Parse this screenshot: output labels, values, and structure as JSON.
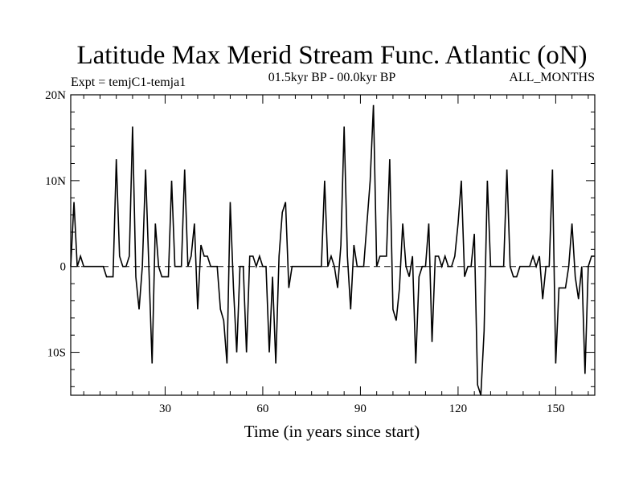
{
  "chart_data": {
    "type": "line",
    "title": "Latitude Max Merid Stream Func. Atlantic (oN)",
    "subtitle_left": "Expt = temjC1-temja1",
    "subtitle_center": "01.5kyr BP - 00.0kyr BP",
    "subtitle_right": "ALL_MONTHS",
    "xlabel": "Time (in years since start)",
    "ylabel": "",
    "xlim": [
      1,
      162
    ],
    "ylim": [
      -15,
      20
    ],
    "x_ticks": [
      30,
      60,
      90,
      120,
      150
    ],
    "y_ticks": [
      {
        "value": 20,
        "label": "20N"
      },
      {
        "value": 10,
        "label": "10N"
      },
      {
        "value": 0,
        "label": "0"
      },
      {
        "value": -10,
        "label": "10S"
      }
    ],
    "zero_line": "dashed",
    "grid": false,
    "series": [
      {
        "name": "latitude",
        "x": [
          1,
          2,
          3,
          4,
          5,
          6,
          7,
          8,
          9,
          10,
          11,
          12,
          13,
          14,
          15,
          16,
          17,
          18,
          19,
          20,
          21,
          22,
          23,
          24,
          25,
          26,
          27,
          28,
          29,
          30,
          31,
          32,
          33,
          34,
          35,
          36,
          37,
          38,
          39,
          40,
          41,
          42,
          43,
          44,
          45,
          46,
          47,
          48,
          49,
          50,
          51,
          52,
          53,
          54,
          55,
          56,
          57,
          58,
          59,
          60,
          61,
          62,
          63,
          64,
          65,
          66,
          67,
          68,
          69,
          70,
          71,
          72,
          73,
          74,
          75,
          76,
          77,
          78,
          79,
          80,
          81,
          82,
          83,
          84,
          85,
          86,
          87,
          88,
          89,
          90,
          91,
          92,
          93,
          94,
          95,
          96,
          97,
          98,
          99,
          100,
          101,
          102,
          103,
          104,
          105,
          106,
          107,
          108,
          109,
          110,
          111,
          112,
          113,
          114,
          115,
          116,
          117,
          118,
          119,
          120,
          121,
          122,
          123,
          124,
          125,
          126,
          127,
          128,
          129,
          130,
          131,
          132,
          133,
          134,
          135,
          136,
          137,
          138,
          139,
          140,
          141,
          142,
          143,
          144,
          145,
          146,
          147,
          148,
          149,
          150,
          151,
          152,
          153,
          154,
          155,
          156,
          157,
          158,
          159,
          160,
          161,
          162
        ],
        "values": [
          0,
          7.5,
          0,
          1.2,
          0,
          0,
          0,
          0,
          0,
          0,
          0,
          -1.2,
          -1.2,
          -1.2,
          12.5,
          1.2,
          0,
          0,
          1.2,
          16.3,
          -1.2,
          -5,
          0,
          11.3,
          0,
          -11.3,
          5,
          0,
          -1.2,
          -1.2,
          -1.2,
          10,
          0,
          0,
          0,
          11.3,
          0,
          1.2,
          5,
          -5,
          2.5,
          1.2,
          1.2,
          0,
          0,
          0,
          -5,
          -6.3,
          -11.3,
          7.5,
          -2.5,
          -10,
          0,
          0,
          -10,
          1.2,
          1.2,
          0,
          1.2,
          0,
          0,
          -10,
          -1.2,
          -11.3,
          1.2,
          6.3,
          7.5,
          -2.5,
          0,
          0,
          0,
          0,
          0,
          0,
          0,
          0,
          0,
          0,
          10,
          0,
          1.2,
          0,
          -2.5,
          2.5,
          16.3,
          1.2,
          -5,
          2.5,
          0,
          0,
          0,
          5,
          10,
          18.8,
          0,
          1.2,
          1.2,
          1.2,
          12.5,
          -5,
          -6.3,
          -2.5,
          5,
          0,
          -1.2,
          1.2,
          -11.3,
          -1.2,
          0,
          0,
          5,
          -8.8,
          1.2,
          1.2,
          0,
          1.2,
          0,
          0,
          1.2,
          5,
          10,
          -1.2,
          0,
          0,
          3.8,
          -13.8,
          -15,
          -7.5,
          10,
          0,
          0,
          0,
          0,
          0,
          11.3,
          0,
          -1.2,
          -1.2,
          0,
          0,
          0,
          0,
          1.2,
          0,
          1.2,
          -3.8,
          0,
          0,
          11.3,
          -11.3,
          -2.5,
          -2.5,
          -2.5,
          0,
          5,
          -1.2,
          -3.8,
          0,
          -12.5,
          0,
          1.2,
          1.2
        ]
      }
    ]
  }
}
